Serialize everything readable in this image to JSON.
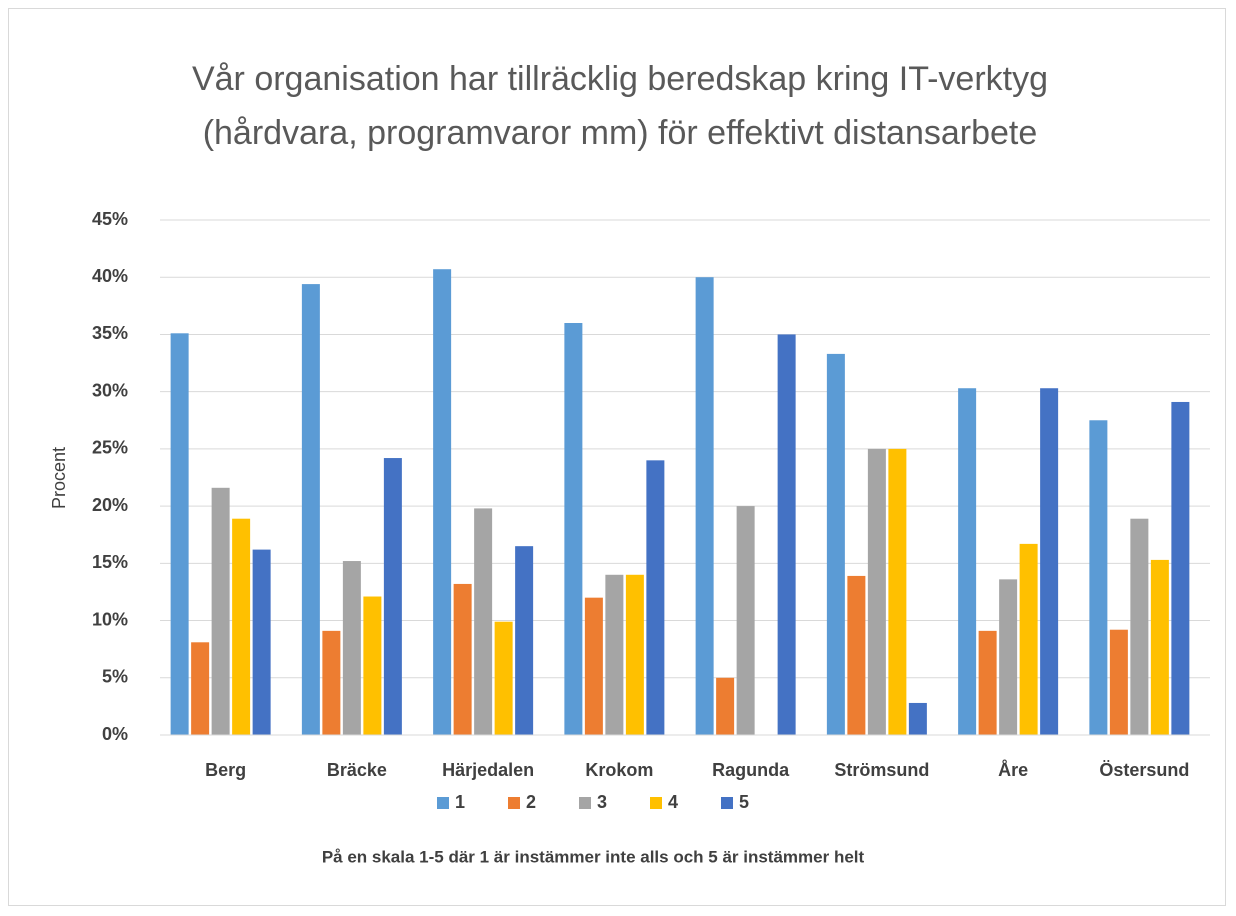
{
  "chart_data": {
    "type": "bar",
    "title": "Vår organisation har tillräcklig beredskap kring IT-verktyg (hårdvara, programvaror mm) för effektivt distansarbete",
    "ylabel": "Procent",
    "xlabel": "På en skala 1-5 där 1 är instämmer inte alls och 5 är instämmer helt",
    "categories": [
      "Berg",
      "Bräcke",
      "Härjedalen",
      "Krokom",
      "Ragunda",
      "Strömsund",
      "Åre",
      "Östersund"
    ],
    "series": [
      {
        "name": "1",
        "color": "#5b9bd5",
        "values": [
          35.1,
          39.4,
          40.7,
          36,
          40,
          33.3,
          30.3,
          27.5
        ]
      },
      {
        "name": "2",
        "color": "#ed7d31",
        "values": [
          8.1,
          9.1,
          13.2,
          12,
          5,
          13.9,
          9.1,
          9.2
        ]
      },
      {
        "name": "3",
        "color": "#a5a5a5",
        "values": [
          21.6,
          15.2,
          19.8,
          14,
          20,
          25,
          13.6,
          18.9
        ]
      },
      {
        "name": "4",
        "color": "#ffc000",
        "values": [
          18.9,
          12.1,
          9.9,
          14,
          0,
          25,
          16.7,
          15.3
        ]
      },
      {
        "name": "5",
        "color": "#4472c4",
        "values": [
          16.2,
          24.2,
          16.5,
          24,
          35,
          2.8,
          30.3,
          29.1
        ]
      }
    ],
    "ylim": [
      0,
      45
    ],
    "yticks": [
      {
        "value": 0,
        "label": "0%"
      },
      {
        "value": 5,
        "label": "5%"
      },
      {
        "value": 10,
        "label": "10%"
      },
      {
        "value": 15,
        "label": "15%"
      },
      {
        "value": 20,
        "label": "20%"
      },
      {
        "value": 25,
        "label": "25%"
      },
      {
        "value": 30,
        "label": "30%"
      },
      {
        "value": 35,
        "label": "35%"
      },
      {
        "value": 40,
        "label": "40%"
      },
      {
        "value": 45,
        "label": "45%"
      }
    ],
    "grid": true,
    "legend": "bottom"
  }
}
